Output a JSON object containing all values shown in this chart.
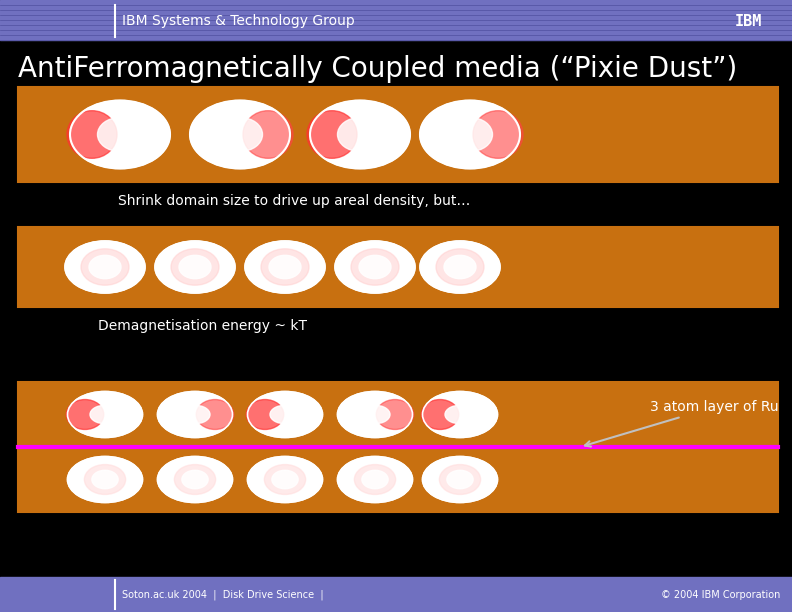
{
  "title": "AntiFerromagnetically Coupled media (“Pixie Dust”)",
  "header_text": "IBM Systems & Technology Group",
  "footer_left": "Soton.ac.uk 2004  |  Disk Drive Science  |",
  "footer_right": "© 2004 IBM Corporation",
  "header_bg": "#7070c0",
  "body_bg": "#000000",
  "footer_bg": "#7070c0",
  "title_color": "#ffffff",
  "bar1_label": "Shrink domain size to drive up areal density, but…",
  "bar2_label": "Demagnetisation energy ~ kT",
  "bar3_annotation": "3 atom layer of Ru",
  "orange_color": "#c87010",
  "bar_border": "#ffffff",
  "ellipse_colors_row1": [
    "red_white",
    "white",
    "red_white",
    "white_red"
  ],
  "ellipse_colors_row2": [
    "white",
    "white_pink",
    "white",
    "white_pink",
    "white"
  ],
  "ru_line_color": "#ff00ff",
  "arrow_color": "#d0d0d0"
}
